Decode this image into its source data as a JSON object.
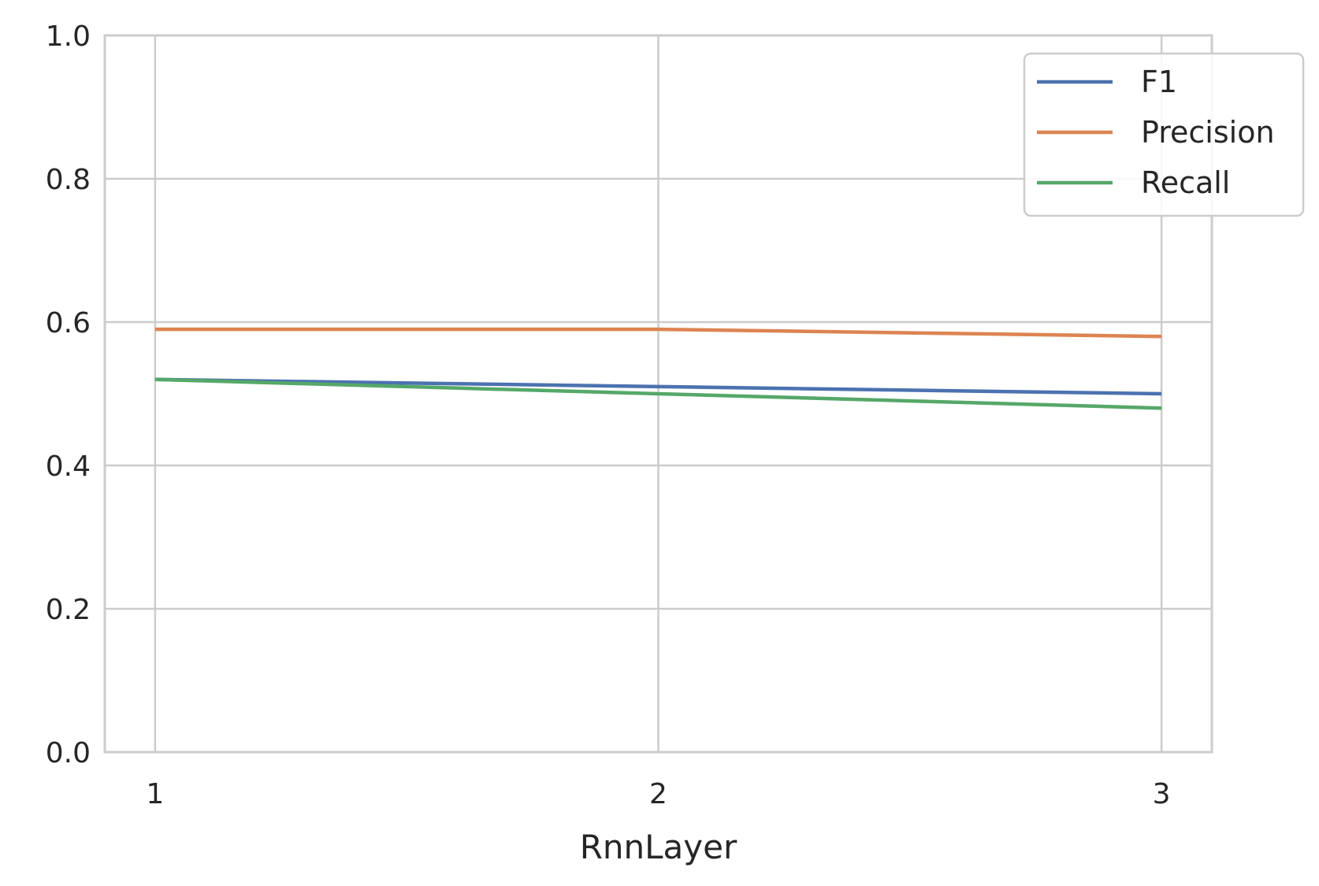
{
  "chart_data": {
    "type": "line",
    "title": "",
    "xlabel": "RnnLayer",
    "ylabel": "",
    "x": [
      1,
      2,
      3
    ],
    "xlim": [
      0.9,
      3.1
    ],
    "ylim": [
      0.0,
      1.0
    ],
    "x_ticks": [
      "1",
      "2",
      "3"
    ],
    "y_ticks": [
      "0.0",
      "0.2",
      "0.4",
      "0.6",
      "0.8",
      "1.0"
    ],
    "grid": true,
    "legend_position": "upper-right",
    "series": [
      {
        "name": "F1",
        "color": "#4c72b0",
        "values": [
          0.52,
          0.51,
          0.5
        ]
      },
      {
        "name": "Precision",
        "color": "#dd8452",
        "values": [
          0.59,
          0.59,
          0.58
        ]
      },
      {
        "name": "Recall",
        "color": "#55a868",
        "values": [
          0.52,
          0.5,
          0.48
        ]
      }
    ]
  }
}
